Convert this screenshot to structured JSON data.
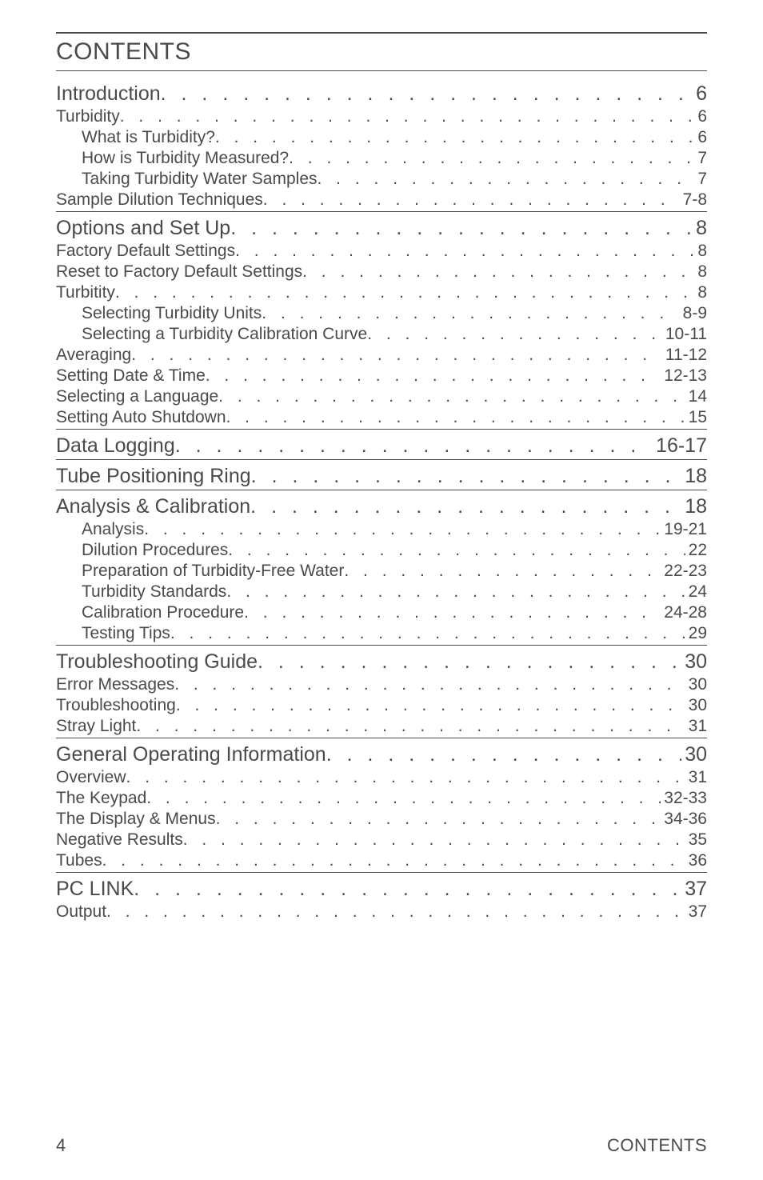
{
  "title": "CONTENTS",
  "footerPage": "4",
  "footerLabel": "CONTENTS",
  "sections": [
    {
      "heading": {
        "label": "Introduction",
        "page": "6",
        "topBorderOnly": false
      },
      "items": [
        {
          "label": "Turbidity",
          "page": "6",
          "level": 1
        },
        {
          "label": "What is Turbidity?",
          "page": "6",
          "level": 2
        },
        {
          "label": "How is Turbidity Measured?",
          "page": "7",
          "level": 2
        },
        {
          "label": "Taking Turbidity Water Samples",
          "page": "7",
          "level": 2
        },
        {
          "label": "Sample Dilution Techniques",
          "page": "7-8",
          "level": 1
        }
      ]
    },
    {
      "heading": {
        "label": "Options and Set Up",
        "page": "8",
        "topBorderOnly": true
      },
      "items": [
        {
          "label": "Factory Default Settings",
          "page": "8",
          "level": 1
        },
        {
          "label": "Reset to Factory Default Settings",
          "page": "8",
          "level": 1
        },
        {
          "label": "Turbitity",
          "page": "8",
          "level": 1
        },
        {
          "label": "Selecting Turbidity Units",
          "page": "8-9",
          "level": 2
        },
        {
          "label": "Selecting a Turbidity Calibration Curve",
          "page": "10-11",
          "level": 2
        },
        {
          "label": "Averaging",
          "page": "11-12",
          "level": 1
        },
        {
          "label": "Setting Date & Time",
          "page": "12-13",
          "level": 1
        },
        {
          "label": "Selecting a Language",
          "page": "14",
          "level": 1
        },
        {
          "label": "Setting Auto Shutdown",
          "page": "15",
          "level": 1
        }
      ]
    },
    {
      "heading": {
        "label": "Data Logging",
        "page": "16-17",
        "topBorderOnly": true
      },
      "items": []
    },
    {
      "heading": {
        "label": "Tube Positioning Ring",
        "page": "18",
        "topBorderOnly": true
      },
      "items": []
    },
    {
      "heading": {
        "label": "Analysis & Calibration",
        "page": "18",
        "topBorderOnly": true
      },
      "items": [
        {
          "label": "Analysis",
          "page": "19-21",
          "level": 2
        },
        {
          "label": "Dilution Procedures",
          "page": "22",
          "level": 2
        },
        {
          "label": "Preparation of Turbidity-Free Water",
          "page": "22-23",
          "level": 2
        },
        {
          "label": "Turbidity Standards",
          "page": "24",
          "level": 2
        },
        {
          "label": "Calibration Procedure",
          "page": "24-28",
          "level": 2
        },
        {
          "label": "Testing Tips",
          "page": "29",
          "level": 2
        }
      ]
    },
    {
      "heading": {
        "label": "Troubleshooting Guide",
        "page": "30",
        "topBorderOnly": true
      },
      "items": [
        {
          "label": "Error Messages",
          "page": "30",
          "level": 1
        },
        {
          "label": "Troubleshooting",
          "page": "30",
          "level": 1
        },
        {
          "label": "Stray Light",
          "page": "31",
          "level": 1
        }
      ]
    },
    {
      "heading": {
        "label": "General Operating Information",
        "page": "30",
        "topBorderOnly": true
      },
      "items": [
        {
          "label": "Overview",
          "page": "31",
          "level": 1
        },
        {
          "label": "The Keypad",
          "page": "32-33",
          "level": 1
        },
        {
          "label": "The Display & Menus",
          "page": "34-36",
          "level": 1
        },
        {
          "label": "Negative Results",
          "page": "35",
          "level": 1
        },
        {
          "label": "Tubes",
          "page": "36",
          "level": 1
        }
      ]
    },
    {
      "heading": {
        "label": "PC LINK",
        "page": "37",
        "topBorderOnly": true
      },
      "items": [
        {
          "label": "Output",
          "page": "37",
          "level": 1
        }
      ]
    }
  ]
}
